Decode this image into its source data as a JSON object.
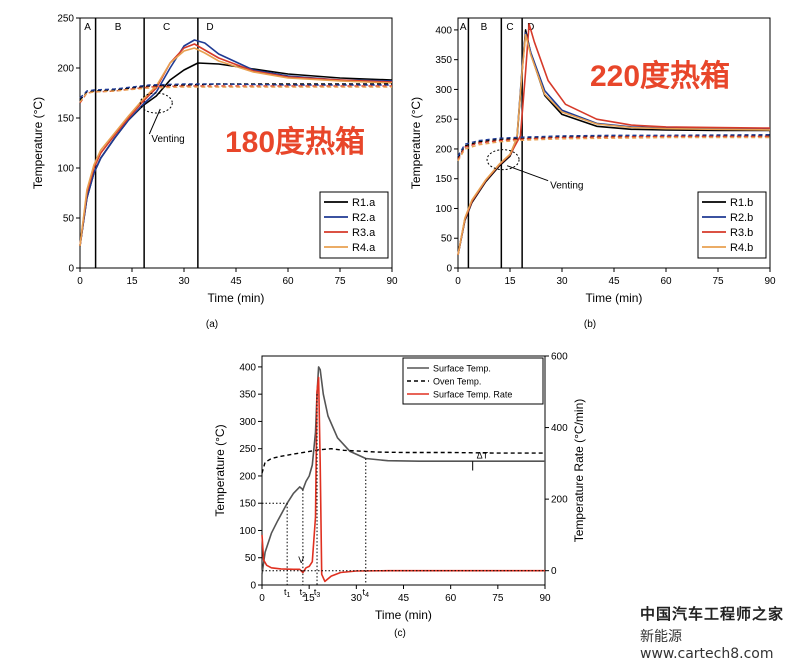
{
  "chart_data": [
    {
      "id": "a",
      "type": "line",
      "caption": "(a)",
      "overlay_title": "180度热箱",
      "xlabel": "Time (min)",
      "ylabel": "Temperature (°C)",
      "xlim": [
        0,
        90
      ],
      "ylim": [
        0,
        250
      ],
      "xticks": [
        0,
        15,
        30,
        45,
        60,
        75,
        90
      ],
      "yticks": [
        0,
        50,
        100,
        150,
        200,
        250
      ],
      "stage_lines": [
        4.5,
        18.5,
        34
      ],
      "stage_labels": [
        {
          "text": "A",
          "x": 2.2
        },
        {
          "text": "B",
          "x": 11
        },
        {
          "text": "C",
          "x": 25
        },
        {
          "text": "D",
          "x": 37.5
        }
      ],
      "annotation": {
        "text": "Venting",
        "x": 20,
        "y": 130,
        "target_x": 22,
        "target_y": 165
      },
      "legend": [
        "R1.a",
        "R2.a",
        "R3.a",
        "R4.a"
      ],
      "legend_position": "bottom-right",
      "series": [
        {
          "name": "R1.a",
          "color": "#000000",
          "x": [
            0,
            2,
            4,
            6,
            10,
            14,
            18,
            22,
            26,
            30,
            34,
            40,
            50,
            60,
            75,
            90
          ],
          "y": [
            22,
            70,
            95,
            110,
            130,
            148,
            162,
            172,
            188,
            198,
            205,
            204,
            199,
            194,
            190,
            188
          ]
        },
        {
          "name": "R2.a",
          "color": "#1f3a93",
          "x": [
            0,
            2,
            4,
            6,
            10,
            14,
            18,
            22,
            26,
            30,
            33,
            36,
            40,
            50,
            60,
            75,
            90
          ],
          "y": [
            22,
            70,
            95,
            110,
            130,
            148,
            163,
            176,
            200,
            222,
            228,
            225,
            214,
            198,
            192,
            188,
            187
          ]
        },
        {
          "name": "R3.a",
          "color": "#d63a2a",
          "x": [
            0,
            2,
            4,
            6,
            10,
            14,
            18,
            22,
            26,
            30,
            33,
            36,
            40,
            50,
            60,
            75,
            90
          ],
          "y": [
            22,
            75,
            100,
            115,
            133,
            150,
            166,
            180,
            205,
            220,
            224,
            218,
            210,
            197,
            191,
            188,
            186
          ]
        },
        {
          "name": "R4.a",
          "color": "#e8a050",
          "x": [
            0,
            2,
            4,
            6,
            10,
            14,
            18,
            22,
            26,
            30,
            33,
            36,
            40,
            50,
            60,
            75,
            90
          ],
          "y": [
            22,
            78,
            103,
            118,
            135,
            152,
            168,
            182,
            205,
            217,
            220,
            215,
            207,
            196,
            190,
            187,
            185
          ]
        },
        {
          "name": "",
          "color": "#000000",
          "dash": true,
          "x": [
            0,
            2,
            4,
            10,
            20,
            30,
            40,
            60,
            90
          ],
          "y": [
            168,
            176,
            177,
            178,
            182,
            183,
            184,
            184,
            184
          ]
        },
        {
          "name": "",
          "color": "#1f3a93",
          "dash": true,
          "x": [
            0,
            2,
            4,
            10,
            20,
            30,
            40,
            60,
            90
          ],
          "y": [
            170,
            177,
            178,
            179,
            183,
            184,
            184,
            183,
            183
          ]
        },
        {
          "name": "",
          "color": "#d63a2a",
          "dash": true,
          "x": [
            0,
            2,
            4,
            10,
            20,
            30,
            40,
            60,
            90
          ],
          "y": [
            165,
            175,
            176,
            177,
            181,
            182,
            182,
            182,
            182
          ]
        },
        {
          "name": "",
          "color": "#e8a050",
          "dash": true,
          "x": [
            0,
            2,
            4,
            10,
            20,
            30,
            40,
            60,
            90
          ],
          "y": [
            166,
            175,
            176,
            177,
            180,
            181,
            181,
            181,
            181
          ]
        }
      ]
    },
    {
      "id": "b",
      "type": "line",
      "caption": "(b)",
      "overlay_title": "220度热箱",
      "xlabel": "Time (min)",
      "ylabel": "Temperature (°C)",
      "xlim": [
        0,
        90
      ],
      "ylim": [
        0,
        420
      ],
      "xticks": [
        0,
        15,
        30,
        45,
        60,
        75,
        90
      ],
      "yticks": [
        0,
        50,
        100,
        150,
        200,
        250,
        300,
        350,
        400
      ],
      "stage_lines": [
        3,
        12.5,
        18.5
      ],
      "stage_labels": [
        {
          "text": "A",
          "x": 1.5
        },
        {
          "text": "B",
          "x": 7.5
        },
        {
          "text": "C",
          "x": 15
        },
        {
          "text": "D",
          "x": 21
        }
      ],
      "annotation": {
        "text": "Venting",
        "x": 26,
        "y": 140,
        "target_x": 13,
        "target_y": 182
      },
      "legend": [
        "R1.b",
        "R2.b",
        "R3.b",
        "R4.b"
      ],
      "legend_position": "bottom-right",
      "series": [
        {
          "name": "R1.b",
          "color": "#000000",
          "x": [
            0,
            2,
            4,
            8,
            12,
            15,
            17,
            18.5,
            19.5,
            21,
            25,
            30,
            40,
            50,
            60,
            75,
            90
          ],
          "y": [
            22,
            80,
            110,
            145,
            172,
            188,
            215,
            330,
            400,
            360,
            290,
            258,
            238,
            233,
            232,
            231,
            231
          ]
        },
        {
          "name": "R2.b",
          "color": "#1f3a93",
          "x": [
            0,
            2,
            4,
            8,
            12,
            15,
            17,
            18.5,
            19.5,
            21,
            25,
            30,
            40,
            50,
            60,
            75,
            90
          ],
          "y": [
            22,
            82,
            112,
            147,
            174,
            190,
            218,
            335,
            395,
            362,
            298,
            265,
            243,
            237,
            235,
            234,
            233
          ]
        },
        {
          "name": "R3.b",
          "color": "#d63a2a",
          "x": [
            0,
            2,
            4,
            8,
            12,
            15,
            18,
            19.5,
            20.5,
            22,
            26,
            31,
            40,
            50,
            60,
            75,
            90
          ],
          "y": [
            22,
            82,
            112,
            147,
            174,
            190,
            222,
            330,
            410,
            380,
            315,
            275,
            250,
            240,
            237,
            236,
            235
          ]
        },
        {
          "name": "R4.b",
          "color": "#e8a050",
          "x": [
            0,
            2,
            4,
            8,
            12,
            15,
            17,
            18.5,
            19.5,
            21,
            25,
            30,
            40,
            50,
            60,
            75,
            90
          ],
          "y": [
            22,
            84,
            114,
            148,
            175,
            191,
            218,
            330,
            392,
            358,
            292,
            262,
            242,
            236,
            234,
            233,
            232
          ]
        },
        {
          "name": "",
          "color": "#000000",
          "dash": true,
          "x": [
            0,
            2,
            6,
            12,
            20,
            30,
            45,
            60,
            90
          ],
          "y": [
            185,
            205,
            212,
            216,
            218,
            220,
            222,
            222,
            222
          ]
        },
        {
          "name": "",
          "color": "#1f3a93",
          "dash": true,
          "x": [
            0,
            2,
            6,
            12,
            20,
            30,
            45,
            60,
            90
          ],
          "y": [
            188,
            208,
            214,
            218,
            220,
            222,
            223,
            223,
            224
          ]
        },
        {
          "name": "",
          "color": "#d63a2a",
          "dash": true,
          "x": [
            0,
            2,
            6,
            12,
            20,
            30,
            45,
            60,
            90
          ],
          "y": [
            182,
            203,
            210,
            214,
            217,
            219,
            220,
            221,
            221
          ]
        },
        {
          "name": "",
          "color": "#e8a050",
          "dash": true,
          "x": [
            0,
            2,
            6,
            12,
            20,
            30,
            45,
            60,
            90
          ],
          "y": [
            180,
            200,
            207,
            212,
            215,
            217,
            218,
            219,
            219
          ]
        }
      ]
    },
    {
      "id": "c",
      "type": "line",
      "caption": "(c)",
      "xlabel": "Time (min)",
      "ylabel": "Temperature (°C)",
      "ylabel_right": "Temperature Rate (°C/min)",
      "xlim": [
        0,
        90
      ],
      "ylim": [
        0,
        420
      ],
      "ylim_right": [
        -40,
        600
      ],
      "xticks": [
        0,
        15,
        30,
        45,
        60,
        75,
        90
      ],
      "yticks": [
        0,
        50,
        100,
        150,
        200,
        250,
        300,
        350,
        400
      ],
      "yticks_right": [
        0,
        200,
        400,
        600
      ],
      "legend": [
        "Surface Temp.",
        "Oven Temp.",
        "Surface Temp. Rate"
      ],
      "legend_position": "top-right",
      "markers": [
        {
          "text": "t1",
          "x": 8
        },
        {
          "text": "t2",
          "x": 13
        },
        {
          "text": "t3",
          "x": 17.5
        },
        {
          "text": "t4",
          "x": 33
        }
      ],
      "delta_label": "ΔT",
      "v_label": "V",
      "series": [
        {
          "name": "Surface Temp.",
          "color": "#555555",
          "x": [
            0,
            1,
            3,
            5,
            8,
            10,
            12,
            13,
            14,
            15,
            16,
            17,
            17.5,
            18,
            18.5,
            19.5,
            21,
            24,
            28,
            33,
            40,
            50,
            60,
            75,
            90
          ],
          "y": [
            20,
            60,
            95,
            118,
            150,
            168,
            180,
            175,
            190,
            200,
            220,
            280,
            350,
            400,
            395,
            350,
            310,
            270,
            245,
            232,
            228,
            227,
            227,
            227,
            227
          ]
        },
        {
          "name": "Oven Temp.",
          "color": "#000000",
          "dash": true,
          "x": [
            0,
            1,
            3,
            6,
            10,
            14,
            18,
            22,
            26,
            30,
            36,
            45,
            60,
            75,
            90
          ],
          "y": [
            205,
            225,
            232,
            236,
            240,
            244,
            248,
            250,
            247,
            246,
            244,
            243,
            243,
            242,
            242
          ]
        },
        {
          "name": "Surface Temp. Rate",
          "color": "#e03020",
          "axis": "right",
          "x": [
            0,
            0.5,
            1.5,
            3,
            6,
            10,
            12,
            13,
            14,
            15,
            16,
            17,
            17.5,
            18,
            18.5,
            19,
            20,
            22,
            25,
            30,
            40,
            60,
            90
          ],
          "y": [
            100,
            30,
            15,
            8,
            5,
            4,
            4,
            -5,
            8,
            12,
            25,
            150,
            500,
            540,
            300,
            -10,
            -30,
            -15,
            -5,
            -1,
            0,
            0,
            0
          ]
        }
      ]
    }
  ],
  "watermark": {
    "line1": "中国汽车工程师之家",
    "line2": "新能源 www.cartech8.com"
  }
}
